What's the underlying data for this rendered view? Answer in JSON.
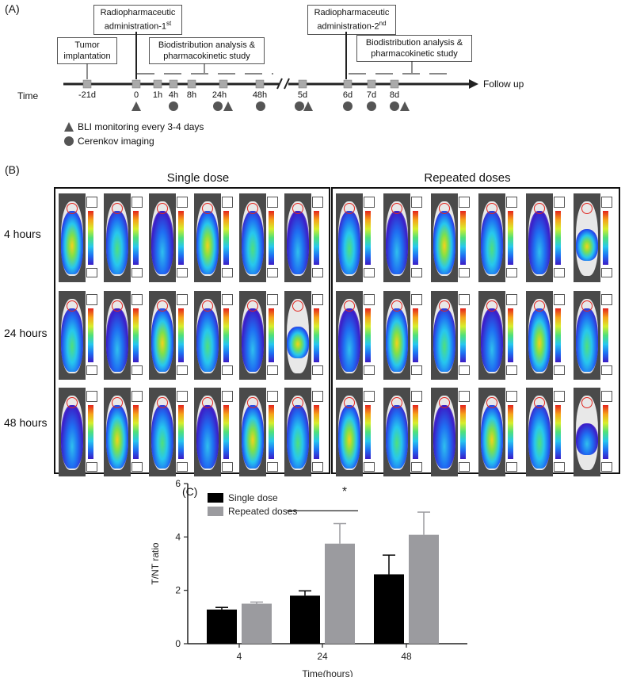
{
  "panel_a": {
    "label": "(A)",
    "boxes": {
      "tumor": "Tumor implantation",
      "radio1_line1": "Radiopharmaceutic",
      "radio1_line2": "administration-1",
      "radio1_sup": "st",
      "bio1_line1": "Biodistribution analysis &",
      "bio1_line2": "pharmacokinetic study",
      "radio2_line1": "Radiopharmaceutic",
      "radio2_line2": "administration-2",
      "radio2_sup": "nd",
      "bio2_line1": "Biodistribution analysis &",
      "bio2_line2": "pharmacokinetic study"
    },
    "time_label": "Time",
    "follow_up": "Follow up",
    "timepoints": [
      "-21d",
      "0",
      "1h",
      "4h",
      "8h",
      "24h",
      "48h",
      "5d",
      "6d",
      "7d",
      "8d"
    ],
    "legend": {
      "triangle": "BLI monitoring every 3-4 days",
      "circle": "Cerenkov imaging"
    },
    "colors": {
      "axis": "#222222",
      "marker": "#aaaaaa",
      "symbol": "#555555"
    }
  },
  "panel_b": {
    "label": "(B)",
    "titles": [
      "Single dose",
      "Repeated doses"
    ],
    "rows": [
      "4 hours",
      "24 hours",
      "48 hours"
    ],
    "mice_per_group": 6
  },
  "panel_c": {
    "label": "(C)"
  },
  "chart_data": {
    "type": "bar",
    "categories": [
      "4",
      "24",
      "48"
    ],
    "series": [
      {
        "name": "Single dose",
        "values": [
          1.28,
          1.8,
          2.6
        ],
        "errors": [
          0.08,
          0.18,
          0.72
        ],
        "color": "#000000"
      },
      {
        "name": "Repeated doses",
        "values": [
          1.5,
          3.75,
          4.08
        ],
        "errors": [
          0.06,
          0.75,
          0.85
        ],
        "color": "#9b9b9f"
      }
    ],
    "xlabel": "Time(hours)",
    "ylabel": "T/NT ratio",
    "ylim": [
      0,
      6
    ],
    "yticks": [
      "0",
      "2",
      "4",
      "6"
    ],
    "significance": {
      "label": "*",
      "category": "24"
    },
    "legend_position": "top-left",
    "grid": false
  }
}
